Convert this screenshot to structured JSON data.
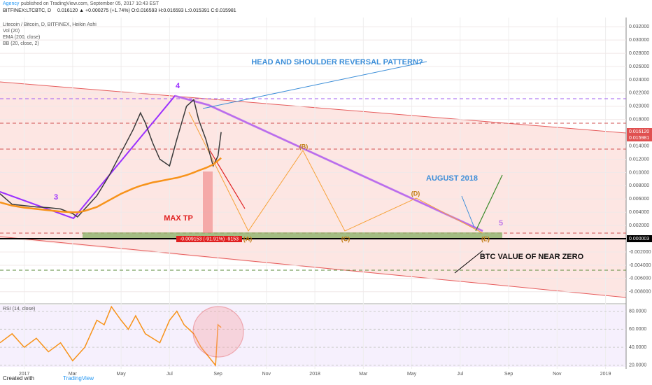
{
  "header": {
    "publisher": "Agency",
    "published": "published on TradingView.com, September 05, 2017 10:43 EST",
    "symbol": "BITFINEX:LTCBTC, D",
    "quote": "0.016120 ▲ +0.000275 (+1.74%) O:0.016593 H:0.016593 L:0.015391 C:0.015981"
  },
  "indicators": [
    "Vol (20)",
    "BB (20, close, 2)"
  ],
  "price_tags": [
    "0.016120",
    "0.015981",
    "0.000003"
  ],
  "annotations": {
    "head_shoulder": "HEAD AND SHOULDER REVERSAL PATTERN?",
    "w3": "3",
    "w4": "4",
    "w5": "5",
    "max_tp": "MAX TP",
    "august": "AUGUST 2018",
    "btc_zero": "BTC VALUE OF NEAR ZERO",
    "a": "(A)",
    "b": "(B)",
    "c": "(C)",
    "d": "(D)",
    "e": "(E)",
    "measure": "-0.009153 (-91.91%) -9153"
  },
  "footer": {
    "created": "Created with",
    "brand": "TradingView"
  },
  "chart_data": [
    {
      "type": "line",
      "title": "Litecoin / Bitcoin, D, BITFINEX, Heikin Ashi",
      "x": [
        -1,
        -0.5,
        0,
        0.5,
        1,
        1.5,
        2,
        2.2,
        2.5,
        3,
        3.5,
        4,
        4.5,
        4.8,
        5,
        5.3,
        5.6,
        6,
        6.3,
        6.7,
        7,
        7.2,
        7.5,
        7.8,
        8,
        8.13
      ],
      "series": [
        {
          "name": "Litecoin / Bitcoin, D, BITFINEX, Heikin Ashi",
          "color": "#3a3a3a",
          "values": [
            0.0068,
            0.0052,
            0.005,
            0.0048,
            0.0047,
            0.0045,
            0.0038,
            0.0033,
            0.0045,
            0.0065,
            0.0095,
            0.013,
            0.0165,
            0.019,
            0.0175,
            0.0145,
            0.012,
            0.011,
            0.015,
            0.02,
            0.021,
            0.018,
            0.015,
            0.011,
            0.0125,
            0.0161
          ]
        },
        {
          "name": "EMA (200, close)",
          "color": "#f7931a",
          "values": [
            0.0055,
            0.005,
            0.0047,
            0.0045,
            0.0043,
            0.0041,
            0.004,
            0.004,
            0.0042,
            0.0048,
            0.0058,
            0.0068,
            0.0076,
            0.008,
            0.0082,
            0.0085,
            0.0087,
            0.009,
            0.0092,
            0.0096,
            0.01,
            0.0103,
            0.0107,
            0.0112,
            0.0118,
            0.0122
          ]
        }
      ],
      "xlim": [
        -1,
        24.85
      ],
      "ylim": [
        -0.0095,
        0.0334
      ],
      "xticks": [
        {
          "value": 0,
          "label": "2017"
        },
        {
          "value": 2,
          "label": "Mar"
        },
        {
          "value": 4,
          "label": "May"
        },
        {
          "value": 6,
          "label": "Jul"
        },
        {
          "value": 8,
          "label": "Sep"
        },
        {
          "value": 10,
          "label": "Nov"
        },
        {
          "value": 12,
          "label": "2018"
        },
        {
          "value": 14,
          "label": "Mar"
        },
        {
          "value": 16,
          "label": "May"
        },
        {
          "value": 18,
          "label": "Jul"
        },
        {
          "value": 20,
          "label": "Sep"
        },
        {
          "value": 22,
          "label": "Nov"
        },
        {
          "value": 24,
          "label": "2019"
        }
      ],
      "yticks": [
        {
          "value": 0.032,
          "label": "0.032000"
        },
        {
          "value": 0.03,
          "label": "0.030000"
        },
        {
          "value": 0.028,
          "label": "0.028000"
        },
        {
          "value": 0.026,
          "label": "0.026000"
        },
        {
          "value": 0.024,
          "label": "0.024000"
        },
        {
          "value": 0.022,
          "label": "0.022000"
        },
        {
          "value": 0.02,
          "label": "0.020000"
        },
        {
          "value": 0.018,
          "label": "0.018000"
        },
        {
          "value": 0.014,
          "label": "0.014000"
        },
        {
          "value": 0.012,
          "label": "0.012000"
        },
        {
          "value": 0.01,
          "label": "0.010000"
        },
        {
          "value": 0.008,
          "label": "0.008000"
        },
        {
          "value": 0.006,
          "label": "0.006000"
        },
        {
          "value": 0.004,
          "label": "0.004000"
        },
        {
          "value": 0.002,
          "label": "0.002000"
        },
        {
          "value": -0.002,
          "label": "-0.002000"
        },
        {
          "value": -0.004,
          "label": "-0.004000"
        },
        {
          "value": -0.006,
          "label": "-0.006000"
        },
        {
          "value": -0.008,
          "label": "-0.008000"
        }
      ],
      "grid": true
    },
    {
      "type": "line",
      "title": "RSI (14, close)",
      "color": "#f7931a",
      "x": [
        -1,
        -0.5,
        0,
        0.5,
        1,
        1.5,
        2,
        2.5,
        3,
        3.3,
        3.6,
        4,
        4.3,
        4.6,
        5,
        5.3,
        5.6,
        6,
        6.3,
        6.6,
        7,
        7.3,
        7.6,
        7.9,
        8,
        8.13
      ],
      "values": [
        45,
        55,
        40,
        50,
        35,
        45,
        25,
        40,
        70,
        65,
        85,
        70,
        60,
        75,
        55,
        50,
        45,
        70,
        80,
        65,
        55,
        40,
        30,
        20,
        65,
        62
      ],
      "xlim": [
        -1,
        24.85
      ],
      "ylim": [
        16,
        87.5
      ],
      "yticks": [
        {
          "value": 80,
          "label": "80.0000"
        },
        {
          "value": 60,
          "label": "60.0000"
        },
        {
          "value": 40,
          "label": "40.0000"
        },
        {
          "value": 20,
          "label": "20.0000"
        }
      ],
      "grid": true
    }
  ]
}
